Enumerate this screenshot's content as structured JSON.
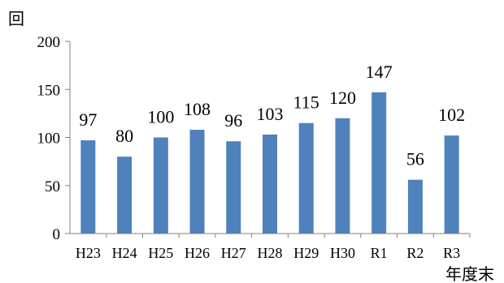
{
  "chart_data": {
    "type": "bar",
    "categories": [
      "H23",
      "H24",
      "H25",
      "H26",
      "H27",
      "H28",
      "H29",
      "H30",
      "R1",
      "R2",
      "R3"
    ],
    "values": [
      97,
      80,
      100,
      108,
      96,
      103,
      115,
      120,
      147,
      56,
      102
    ],
    "ylabel": "回",
    "xlabel": "年度末",
    "ylim": [
      0,
      200
    ],
    "yticks": [
      0,
      50,
      100,
      150,
      200
    ],
    "grid": false,
    "legend": "none",
    "bar_color": "#4f81bd",
    "data_labels": true
  }
}
